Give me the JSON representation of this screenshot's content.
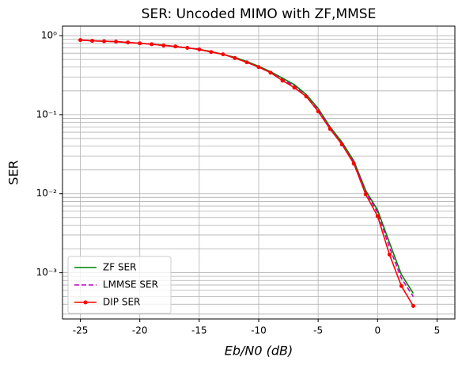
{
  "chart_data": {
    "type": "line",
    "title": "SER: Uncoded MIMO with ZF,MMSE",
    "xlabel": "Eb/N0 (dB)",
    "ylabel": "SER",
    "x": [
      -25,
      -24,
      -23,
      -22,
      -21,
      -20,
      -19,
      -18,
      -17,
      -16,
      -15,
      -14,
      -13,
      -12,
      -11,
      -10,
      -9,
      -8,
      -7,
      -6,
      -5,
      -4,
      -3,
      -2,
      -1,
      0,
      1,
      2,
      3
    ],
    "series": [
      {
        "name": "ZF SER",
        "color": "#008000",
        "dash": "solid",
        "marker": false,
        "values": [
          0.88,
          0.86,
          0.85,
          0.84,
          0.82,
          0.8,
          0.78,
          0.76,
          0.73,
          0.7,
          0.67,
          0.63,
          0.58,
          0.53,
          0.47,
          0.41,
          0.35,
          0.29,
          0.24,
          0.18,
          0.12,
          0.07,
          0.045,
          0.026,
          0.011,
          0.0062,
          0.0024,
          0.00095,
          0.00055
        ]
      },
      {
        "name": "LMMSE SER",
        "color": "#bf00bf",
        "dash": "dashed",
        "marker": false,
        "values": [
          0.88,
          0.86,
          0.85,
          0.84,
          0.82,
          0.8,
          0.78,
          0.75,
          0.73,
          0.7,
          0.67,
          0.62,
          0.58,
          0.52,
          0.46,
          0.4,
          0.34,
          0.28,
          0.23,
          0.17,
          0.115,
          0.068,
          0.043,
          0.025,
          0.0105,
          0.0058,
          0.0021,
          0.00085,
          0.0005
        ]
      },
      {
        "name": "DIP SER",
        "color": "#ff0000",
        "dash": "solid",
        "marker": true,
        "values": [
          0.88,
          0.86,
          0.85,
          0.84,
          0.82,
          0.8,
          0.78,
          0.75,
          0.73,
          0.7,
          0.67,
          0.62,
          0.58,
          0.52,
          0.46,
          0.4,
          0.34,
          0.27,
          0.22,
          0.17,
          0.11,
          0.066,
          0.042,
          0.024,
          0.0098,
          0.0052,
          0.0017,
          0.00068,
          0.00038
        ]
      }
    ],
    "xlim": [
      -26.5,
      6.5
    ],
    "xticks": [
      -25,
      -20,
      -15,
      -10,
      -5,
      0,
      5
    ],
    "ylim": [
      0.00026,
      1.32
    ],
    "yticks": [
      {
        "value": 0.001,
        "label": "10⁻³"
      },
      {
        "value": 0.01,
        "label": "10⁻²"
      },
      {
        "value": 0.1,
        "label": "10⁻¹"
      },
      {
        "value": 1,
        "label": "10⁰"
      }
    ],
    "log_y": true,
    "grid": true,
    "legend": "lower left"
  }
}
